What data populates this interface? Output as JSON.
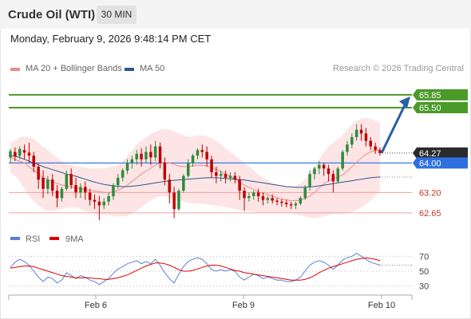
{
  "header": {
    "title": "Crude Oil (WTI)",
    "timeframe": "30 MIN"
  },
  "datetime": "Monday, February 9, 2026 9:48:14 PM CET",
  "legend": {
    "ma20_label": "MA 20 + Bollinger Bands",
    "ma50_label": "MA 50",
    "ma20_color": "#f08a8a",
    "ma50_color": "#2b5797",
    "credit": "Research © 2026 Trading Central"
  },
  "rsi_legend": {
    "rsi_label": "RSI",
    "ma_label": "9MA",
    "rsi_color": "#5b7fd6",
    "ma_color": "#e00000"
  },
  "colors": {
    "up": "#2e8b3a",
    "down": "#c00000",
    "resistance": "#4a9a2a",
    "support": "#f0a0a0",
    "pivot": "#3d7be0",
    "arrow": "#2b5fa5",
    "band_fill": "#fde0e0"
  },
  "chart_data": [
    {
      "type": "candlestick",
      "ylim": [
        62.3,
        66.3
      ],
      "x_ticks": [
        "Feb 6",
        "Feb 9",
        "Feb 10"
      ],
      "price_levels": [
        {
          "value": 65.85,
          "label": "65.85",
          "kind": "resistance"
        },
        {
          "value": 65.5,
          "label": "65.50",
          "kind": "resistance"
        },
        {
          "value": 64.27,
          "label": "64.27",
          "kind": "last"
        },
        {
          "value": 64.0,
          "label": "64.00",
          "kind": "pivot"
        },
        {
          "value": 63.2,
          "label": "63.20",
          "kind": "support"
        },
        {
          "value": 62.65,
          "label": "62.65",
          "kind": "support"
        }
      ],
      "arrow": {
        "from": 64.27,
        "to": 65.85
      },
      "candles": [
        [
          64.15,
          64.38,
          64.32,
          64.0
        ],
        [
          64.3,
          64.42,
          64.18,
          64.05
        ],
        [
          64.2,
          64.45,
          64.38,
          64.1
        ],
        [
          64.35,
          64.5,
          64.28,
          64.1
        ],
        [
          64.28,
          64.55,
          64.2,
          64.0
        ],
        [
          64.2,
          64.3,
          63.9,
          63.75
        ],
        [
          63.9,
          64.0,
          63.55,
          63.3
        ],
        [
          63.6,
          63.8,
          63.3,
          63.05
        ],
        [
          63.3,
          63.65,
          63.55,
          63.15
        ],
        [
          63.55,
          63.7,
          63.25,
          63.1
        ],
        [
          63.25,
          63.4,
          63.05,
          62.8
        ],
        [
          63.05,
          63.35,
          63.3,
          62.95
        ],
        [
          63.3,
          63.8,
          63.7,
          63.25
        ],
        [
          63.7,
          63.85,
          63.4,
          63.3
        ],
        [
          63.4,
          63.6,
          63.2,
          63.05
        ],
        [
          63.2,
          63.45,
          63.35,
          63.05
        ],
        [
          63.35,
          63.5,
          63.2,
          63.0
        ],
        [
          63.2,
          63.3,
          63.0,
          62.85
        ],
        [
          63.0,
          63.15,
          62.95,
          62.75
        ],
        [
          62.95,
          63.1,
          62.85,
          62.45
        ],
        [
          62.85,
          63.05,
          62.95,
          62.75
        ],
        [
          62.95,
          63.2,
          63.1,
          62.85
        ],
        [
          63.1,
          63.45,
          63.4,
          63.0
        ],
        [
          63.4,
          63.7,
          63.6,
          63.3
        ],
        [
          63.6,
          63.85,
          63.8,
          63.5
        ],
        [
          63.8,
          64.1,
          64.0,
          63.7
        ],
        [
          64.0,
          64.2,
          64.1,
          63.85
        ],
        [
          64.1,
          64.35,
          64.25,
          63.95
        ],
        [
          64.25,
          64.4,
          64.1,
          63.9
        ],
        [
          64.1,
          64.45,
          64.3,
          64.0
        ],
        [
          64.3,
          64.5,
          64.15,
          63.95
        ],
        [
          64.15,
          64.6,
          64.45,
          64.05
        ],
        [
          64.45,
          64.55,
          64.0,
          63.85
        ],
        [
          64.0,
          64.15,
          63.55,
          63.4
        ],
        [
          63.55,
          63.7,
          63.2,
          62.9
        ],
        [
          63.2,
          63.35,
          62.75,
          62.5
        ],
        [
          62.75,
          63.3,
          63.25,
          62.7
        ],
        [
          63.25,
          63.7,
          63.65,
          63.2
        ],
        [
          63.65,
          64.1,
          64.0,
          63.6
        ],
        [
          64.0,
          64.25,
          64.2,
          63.9
        ],
        [
          64.2,
          64.4,
          64.35,
          64.1
        ],
        [
          64.35,
          64.5,
          64.3,
          64.15
        ],
        [
          64.3,
          64.45,
          64.1,
          63.9
        ],
        [
          64.1,
          64.2,
          63.75,
          63.6
        ],
        [
          63.75,
          63.9,
          63.65,
          63.45
        ],
        [
          63.65,
          63.8,
          63.7,
          63.5
        ],
        [
          63.7,
          63.8,
          63.6,
          63.45
        ],
        [
          63.6,
          63.75,
          63.65,
          63.5
        ],
        [
          63.65,
          63.75,
          63.55,
          63.45
        ],
        [
          63.55,
          63.65,
          63.25,
          63.0
        ],
        [
          63.25,
          63.35,
          63.05,
          62.7
        ],
        [
          63.05,
          63.2,
          63.1,
          62.95
        ],
        [
          63.1,
          63.25,
          63.2,
          63.0
        ],
        [
          63.2,
          63.3,
          63.1,
          62.95
        ],
        [
          63.1,
          63.2,
          63.0,
          62.85
        ],
        [
          63.0,
          63.1,
          63.05,
          62.9
        ],
        [
          63.05,
          63.15,
          62.98,
          62.9
        ],
        [
          62.98,
          63.05,
          62.95,
          62.85
        ],
        [
          62.95,
          63.02,
          62.92,
          62.82
        ],
        [
          62.92,
          63.0,
          62.88,
          62.8
        ],
        [
          62.88,
          62.95,
          62.85,
          62.75
        ],
        [
          62.85,
          62.95,
          62.9,
          62.75
        ],
        [
          62.9,
          63.1,
          63.05,
          62.85
        ],
        [
          63.05,
          63.4,
          63.35,
          63.0
        ],
        [
          63.35,
          63.8,
          63.7,
          63.25
        ],
        [
          63.7,
          63.9,
          63.85,
          63.55
        ],
        [
          63.85,
          64.05,
          63.95,
          63.7
        ],
        [
          63.95,
          64.0,
          63.85,
          63.65
        ],
        [
          63.85,
          63.95,
          63.7,
          63.5
        ],
        [
          63.7,
          63.8,
          63.5,
          63.2
        ],
        [
          63.5,
          63.9,
          63.85,
          63.45
        ],
        [
          63.85,
          64.35,
          64.3,
          63.8
        ],
        [
          64.3,
          64.6,
          64.5,
          64.2
        ],
        [
          64.5,
          64.8,
          64.7,
          64.4
        ],
        [
          64.7,
          65.05,
          64.9,
          64.6
        ],
        [
          64.9,
          65.05,
          64.8,
          64.6
        ],
        [
          64.8,
          64.95,
          64.6,
          64.45
        ],
        [
          64.6,
          64.7,
          64.45,
          64.35
        ],
        [
          64.45,
          64.55,
          64.35,
          64.25
        ],
        [
          64.35,
          64.42,
          64.27,
          64.2
        ]
      ],
      "ma20": [
        64.15,
        64.1,
        64.05,
        64.0,
        63.9,
        63.8,
        63.7,
        63.6,
        63.55,
        63.5,
        63.45,
        63.4,
        63.38,
        63.35,
        63.32,
        63.3,
        63.28,
        63.26,
        63.24,
        63.22,
        63.2,
        63.2,
        63.22,
        63.26,
        63.32,
        63.4,
        63.5,
        63.6,
        63.7,
        63.78,
        63.86,
        63.94,
        64.0,
        64.02,
        64.0,
        63.96,
        63.92,
        63.9,
        63.9,
        63.92,
        63.94,
        63.94,
        63.92,
        63.88,
        63.82,
        63.76,
        63.7,
        63.64,
        63.56,
        63.48,
        63.4,
        63.34,
        63.28,
        63.22,
        63.18,
        63.14,
        63.1,
        63.06,
        63.02,
        63.0,
        62.98,
        62.98,
        63.0,
        63.04,
        63.1,
        63.2,
        63.32,
        63.44,
        63.52,
        63.58,
        63.62,
        63.68,
        63.78,
        63.9,
        64.02,
        64.14,
        64.24,
        64.3,
        64.34,
        64.36
      ],
      "bb_upper": [
        64.55,
        64.6,
        64.7,
        64.72,
        64.7,
        64.65,
        64.55,
        64.45,
        64.35,
        64.25,
        64.15,
        64.05,
        64.0,
        63.95,
        63.9,
        63.9,
        63.88,
        63.85,
        63.85,
        63.85,
        63.85,
        63.88,
        63.9,
        63.95,
        64.05,
        64.2,
        64.35,
        64.5,
        64.6,
        64.7,
        64.78,
        64.85,
        64.9,
        64.92,
        64.9,
        64.85,
        64.8,
        64.75,
        64.72,
        64.72,
        64.75,
        64.75,
        64.72,
        64.68,
        64.6,
        64.5,
        64.4,
        64.3,
        64.2,
        64.1,
        64.0,
        63.9,
        63.8,
        63.7,
        63.6,
        63.52,
        63.46,
        63.42,
        63.38,
        63.35,
        63.35,
        63.38,
        63.45,
        63.55,
        63.7,
        63.9,
        64.1,
        64.3,
        64.45,
        64.55,
        64.65,
        64.75,
        64.9,
        65.05,
        65.15,
        65.2,
        65.22,
        65.2,
        65.15,
        65.1
      ],
      "bb_lower": [
        63.75,
        63.65,
        63.5,
        63.3,
        63.1,
        62.95,
        62.85,
        62.75,
        62.7,
        62.7,
        62.72,
        62.75,
        62.78,
        62.8,
        62.8,
        62.75,
        62.7,
        62.65,
        62.62,
        62.6,
        62.6,
        62.58,
        62.55,
        62.55,
        62.55,
        62.58,
        62.62,
        62.7,
        62.8,
        62.9,
        62.98,
        63.05,
        63.1,
        63.1,
        63.05,
        63.0,
        62.98,
        62.95,
        62.92,
        62.9,
        62.9,
        62.9,
        62.88,
        62.86,
        62.84,
        62.82,
        62.8,
        62.78,
        62.75,
        62.72,
        62.7,
        62.7,
        62.68,
        62.66,
        62.66,
        62.66,
        62.66,
        62.66,
        62.66,
        62.66,
        62.65,
        62.62,
        62.58,
        62.55,
        62.52,
        62.5,
        62.52,
        62.55,
        62.6,
        62.62,
        62.62,
        62.62,
        62.64,
        62.68,
        62.72,
        62.8,
        62.88,
        62.98,
        63.1,
        63.25
      ],
      "ma50": [
        64.2,
        64.18,
        64.15,
        64.1,
        64.05,
        64.0,
        63.95,
        63.9,
        63.86,
        63.82,
        63.78,
        63.74,
        63.7,
        63.67,
        63.64,
        63.6,
        63.56,
        63.52,
        63.48,
        63.45,
        63.42,
        63.4,
        63.38,
        63.37,
        63.36,
        63.36,
        63.37,
        63.38,
        63.4,
        63.42,
        63.44,
        63.46,
        63.48,
        63.5,
        63.52,
        63.53,
        63.54,
        63.55,
        63.56,
        63.57,
        63.58,
        63.59,
        63.6,
        63.6,
        63.6,
        63.59,
        63.58,
        63.57,
        63.56,
        63.55,
        63.54,
        63.52,
        63.5,
        63.48,
        63.46,
        63.44,
        63.42,
        63.4,
        63.38,
        63.36,
        63.35,
        63.34,
        63.34,
        63.34,
        63.35,
        63.36,
        63.38,
        63.4,
        63.42,
        63.44,
        63.46,
        63.48,
        63.5,
        63.52,
        63.54,
        63.56,
        63.58,
        63.6,
        63.61,
        63.62
      ]
    },
    {
      "type": "line",
      "name": "RSI",
      "ylim": [
        20,
        80
      ],
      "y_ticks": [
        70,
        50,
        30
      ],
      "series": [
        {
          "name": "RSI",
          "values": [
            55,
            62,
            66,
            63,
            58,
            50,
            42,
            36,
            42,
            40,
            34,
            38,
            48,
            44,
            40,
            44,
            42,
            38,
            36,
            32,
            36,
            40,
            47,
            53,
            56,
            60,
            62,
            64,
            60,
            63,
            60,
            66,
            58,
            48,
            40,
            34,
            46,
            56,
            63,
            66,
            68,
            66,
            60,
            52,
            50,
            52,
            50,
            52,
            50,
            42,
            38,
            42,
            46,
            44,
            40,
            42,
            40,
            38,
            38,
            36,
            36,
            38,
            42,
            50,
            58,
            62,
            64,
            62,
            58,
            52,
            58,
            65,
            68,
            70,
            74,
            70,
            66,
            62,
            60,
            58
          ]
        },
        {
          "name": "9MA",
          "values": [
            54,
            55,
            56,
            57,
            57,
            56,
            54,
            52,
            50,
            48,
            46,
            44,
            43,
            42,
            41,
            41,
            41,
            41,
            40,
            40,
            39,
            39,
            40,
            41,
            43,
            45,
            48,
            51,
            54,
            57,
            59,
            61,
            61,
            60,
            58,
            55,
            52,
            50,
            50,
            51,
            53,
            55,
            57,
            58,
            58,
            57,
            55,
            53,
            51,
            50,
            48,
            47,
            46,
            45,
            44,
            43,
            42,
            41,
            40,
            39,
            38,
            38,
            38,
            39,
            41,
            44,
            48,
            51,
            54,
            56,
            58,
            60,
            62,
            64,
            66,
            67,
            68,
            67,
            66,
            64
          ]
        }
      ]
    }
  ]
}
